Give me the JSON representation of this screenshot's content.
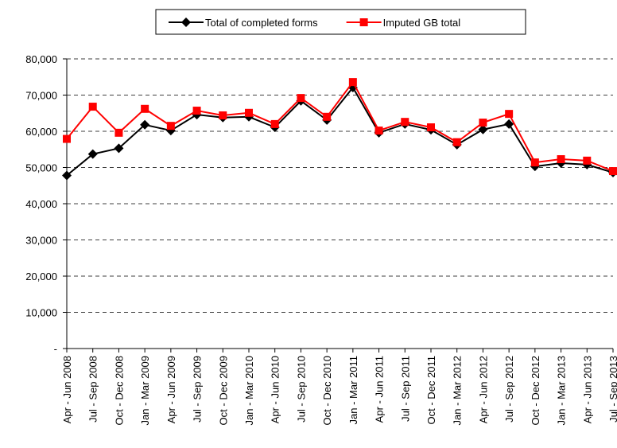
{
  "chart_data": {
    "type": "line",
    "categories": [
      "Apr - Jun 2008",
      "Jul - Sep 2008",
      "Oct - Dec 2008",
      "Jan - Mar 2009",
      "Apr - Jun 2009",
      "Jul - Sep 2009",
      "Oct - Dec 2009",
      "Jan - Mar 2010",
      "Apr - Jun 2010",
      "Jul - Sep 2010",
      "Oct - Dec 2010",
      "Jan - Mar 2011",
      "Apr - Jun 2011",
      "Jul - Sep 2011",
      "Oct - Dec 2011",
      "Jan - Mar 2012",
      "Apr - Jun 2012",
      "Jul - Sep 2012",
      "Oct - Dec 2012",
      "Jan - Mar 2013",
      "Apr - Jun 2013",
      "Jul - Sep 2013"
    ],
    "series": [
      {
        "name": "Total of completed forms",
        "color": "#000000",
        "marker": "diamond",
        "values": [
          47800,
          53700,
          55300,
          61800,
          60200,
          64600,
          63800,
          64000,
          61100,
          68400,
          63100,
          72100,
          59600,
          62000,
          60400,
          56300,
          60500,
          62000,
          50300,
          51200,
          50800,
          48600
        ]
      },
      {
        "name": "Imputed GB total",
        "color": "#ff0000",
        "marker": "square",
        "values": [
          57900,
          66800,
          59600,
          66200,
          61500,
          65700,
          64400,
          65100,
          62000,
          69200,
          64000,
          73600,
          60200,
          62600,
          61100,
          57000,
          62400,
          64800,
          51400,
          52300,
          51900,
          49000
        ]
      }
    ],
    "ylim": [
      0,
      80000
    ],
    "yticks": [
      {
        "value": 0,
        "label": "-"
      },
      {
        "value": 10000,
        "label": "10,000"
      },
      {
        "value": 20000,
        "label": "20,000"
      },
      {
        "value": 30000,
        "label": "30,000"
      },
      {
        "value": 40000,
        "label": "40,000"
      },
      {
        "value": 50000,
        "label": "50,000"
      },
      {
        "value": 60000,
        "label": "60,000"
      },
      {
        "value": 70000,
        "label": "70,000"
      },
      {
        "value": 80000,
        "label": "80,000"
      }
    ],
    "grid": true,
    "legend": "top"
  }
}
